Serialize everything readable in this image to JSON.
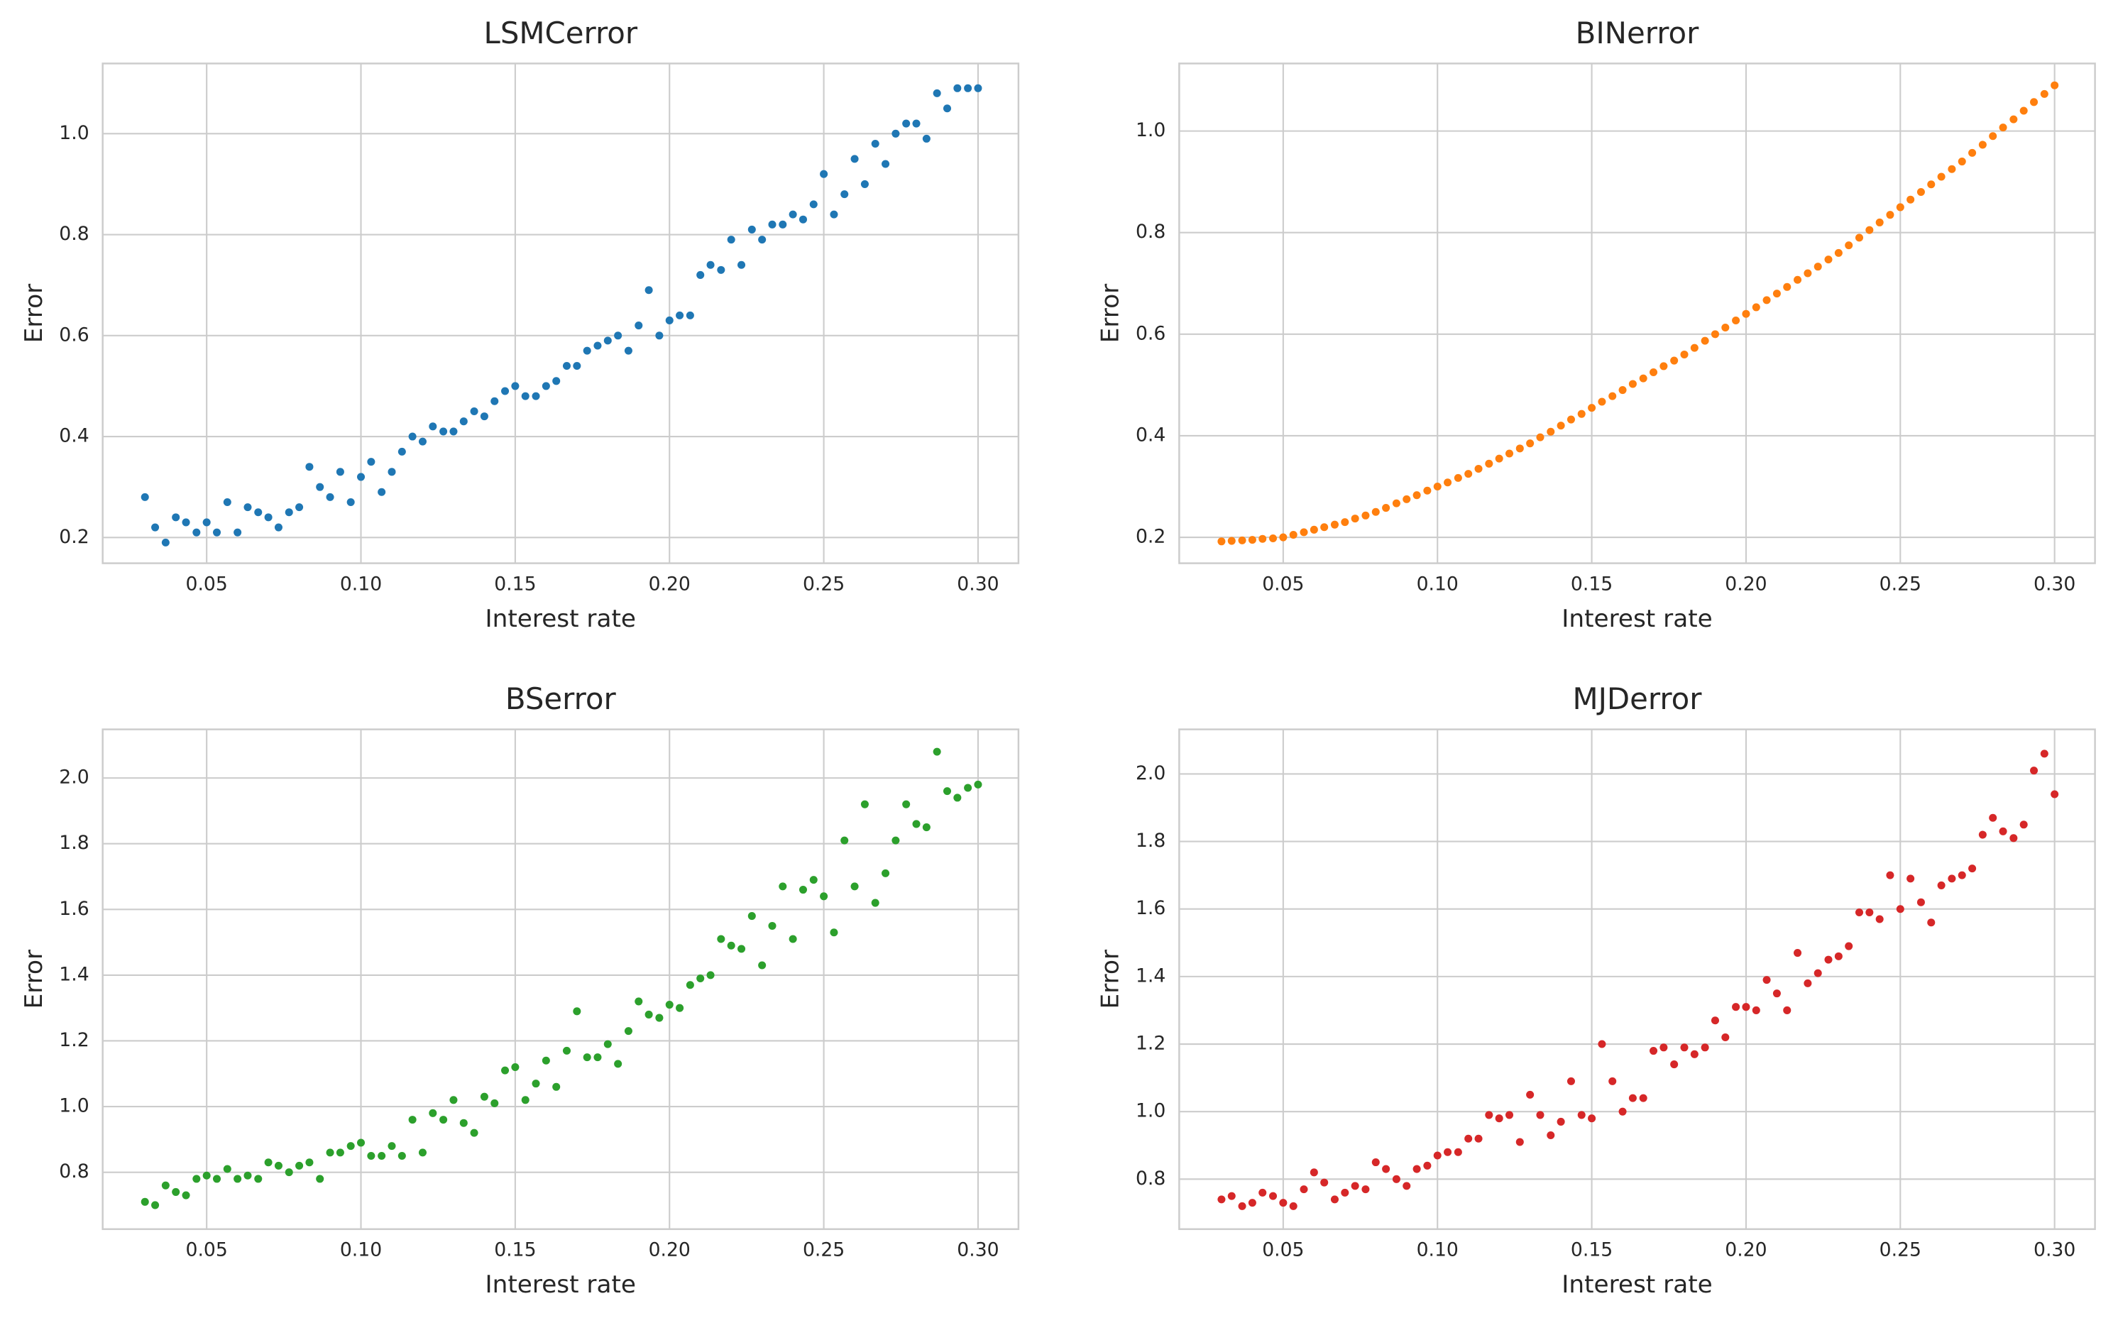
{
  "chart_data": [
    {
      "type": "scatter",
      "title": "LSMCerror",
      "xlabel": "Interest rate",
      "ylabel": "Error",
      "color": "#1f77b4",
      "grid": true,
      "x": [
        0.03,
        0.0333,
        0.0367,
        0.04,
        0.0433,
        0.0467,
        0.05,
        0.0533,
        0.0567,
        0.06,
        0.0633,
        0.0667,
        0.07,
        0.0733,
        0.0767,
        0.08,
        0.0833,
        0.0867,
        0.09,
        0.0933,
        0.0967,
        0.1,
        0.1033,
        0.1067,
        0.11,
        0.1133,
        0.1167,
        0.12,
        0.1233,
        0.1267,
        0.13,
        0.1333,
        0.1367,
        0.14,
        0.1433,
        0.1467,
        0.15,
        0.1533,
        0.1567,
        0.16,
        0.1633,
        0.1667,
        0.17,
        0.1733,
        0.1767,
        0.18,
        0.1833,
        0.1867,
        0.19,
        0.1933,
        0.1967,
        0.2,
        0.2033,
        0.2067,
        0.21,
        0.2133,
        0.2167,
        0.22,
        0.2233,
        0.2267,
        0.23,
        0.2333,
        0.2367,
        0.24,
        0.2433,
        0.2467,
        0.25,
        0.2533,
        0.2567,
        0.26,
        0.2633,
        0.2667,
        0.27,
        0.2733,
        0.2767,
        0.28,
        0.2833,
        0.2867,
        0.29,
        0.2933,
        0.2967,
        0.3
      ],
      "values": [
        0.28,
        0.22,
        0.19,
        0.24,
        0.23,
        0.21,
        0.23,
        0.21,
        0.27,
        0.21,
        0.26,
        0.25,
        0.24,
        0.22,
        0.25,
        0.26,
        0.34,
        0.3,
        0.28,
        0.33,
        0.27,
        0.32,
        0.35,
        0.29,
        0.33,
        0.37,
        0.4,
        0.39,
        0.42,
        0.41,
        0.41,
        0.43,
        0.45,
        0.44,
        0.47,
        0.49,
        0.5,
        0.48,
        0.48,
        0.5,
        0.51,
        0.54,
        0.54,
        0.57,
        0.58,
        0.59,
        0.6,
        0.57,
        0.62,
        0.69,
        0.6,
        0.63,
        0.64,
        0.64,
        0.72,
        0.74,
        0.73,
        0.79,
        0.74,
        0.81,
        0.79,
        0.82,
        0.82,
        0.84,
        0.83,
        0.86,
        0.92,
        0.84,
        0.88,
        0.95,
        0.9,
        0.98,
        0.94,
        1.0,
        1.02,
        1.02,
        0.99,
        1.08,
        1.05,
        1.09,
        1.09,
        1.09
      ],
      "xlim": [
        0.0163,
        0.3131
      ],
      "ylim": [
        0.149,
        1.139
      ],
      "xticks": [
        0.05,
        {
          "value": 0.1,
          "label": "0.10"
        },
        0.15,
        {
          "value": 0.2,
          "label": "0.20"
        },
        0.25,
        {
          "value": 0.3,
          "label": "0.30"
        }
      ],
      "yticks": [
        0.2,
        0.4,
        0.6,
        0.8,
        {
          "value": 1,
          "label": "1.0"
        }
      ]
    },
    {
      "type": "scatter",
      "title": "BINerror",
      "xlabel": "Interest rate",
      "ylabel": "Error",
      "color": "#ff7f0e",
      "grid": true,
      "x": [
        0.03,
        0.0333,
        0.0367,
        0.04,
        0.0433,
        0.0467,
        0.05,
        0.0533,
        0.0567,
        0.06,
        0.0633,
        0.0667,
        0.07,
        0.0733,
        0.0767,
        0.08,
        0.0833,
        0.0867,
        0.09,
        0.0933,
        0.0967,
        0.1,
        0.1033,
        0.1067,
        0.11,
        0.1133,
        0.1167,
        0.12,
        0.1233,
        0.1267,
        0.13,
        0.1333,
        0.1367,
        0.14,
        0.1433,
        0.1467,
        0.15,
        0.1533,
        0.1567,
        0.16,
        0.1633,
        0.1667,
        0.17,
        0.1733,
        0.1767,
        0.18,
        0.1833,
        0.1867,
        0.19,
        0.1933,
        0.1967,
        0.2,
        0.2033,
        0.2067,
        0.21,
        0.2133,
        0.2167,
        0.22,
        0.2233,
        0.2267,
        0.23,
        0.2333,
        0.2367,
        0.24,
        0.2433,
        0.2467,
        0.25,
        0.2533,
        0.2567,
        0.26,
        0.2633,
        0.2667,
        0.27,
        0.2733,
        0.2767,
        0.28,
        0.2833,
        0.2867,
        0.29,
        0.2933,
        0.2967,
        0.3
      ],
      "values": [
        0.192,
        0.193,
        0.194,
        0.195,
        0.197,
        0.198,
        0.2,
        0.205,
        0.21,
        0.215,
        0.22,
        0.225,
        0.23,
        0.237,
        0.243,
        0.25,
        0.258,
        0.267,
        0.275,
        0.283,
        0.292,
        0.3,
        0.308,
        0.317,
        0.325,
        0.335,
        0.345,
        0.355,
        0.365,
        0.375,
        0.385,
        0.397,
        0.408,
        0.42,
        0.432,
        0.443,
        0.455,
        0.467,
        0.478,
        0.49,
        0.502,
        0.513,
        0.525,
        0.537,
        0.548,
        0.56,
        0.573,
        0.587,
        0.6,
        0.613,
        0.627,
        0.64,
        0.653,
        0.667,
        0.68,
        0.693,
        0.707,
        0.72,
        0.733,
        0.747,
        0.76,
        0.775,
        0.79,
        0.805,
        0.82,
        0.835,
        0.85,
        0.865,
        0.88,
        0.895,
        0.91,
        0.925,
        0.94,
        0.957,
        0.973,
        0.99,
        1.007,
        1.023,
        1.04,
        1.057,
        1.073,
        1.09
      ],
      "xlim": [
        0.0163,
        0.3131
      ],
      "ylim": [
        0.149,
        1.133
      ],
      "xticks": [
        0.05,
        {
          "value": 0.1,
          "label": "0.10"
        },
        0.15,
        {
          "value": 0.2,
          "label": "0.20"
        },
        0.25,
        {
          "value": 0.3,
          "label": "0.30"
        }
      ],
      "yticks": [
        0.2,
        0.4,
        0.6,
        0.8,
        {
          "value": 1,
          "label": "1.0"
        }
      ]
    },
    {
      "type": "scatter",
      "title": "BSerror",
      "xlabel": "Interest rate",
      "ylabel": "Error",
      "color": "#2ca02c",
      "grid": true,
      "x": [
        0.03,
        0.0333,
        0.0367,
        0.04,
        0.0433,
        0.0467,
        0.05,
        0.0533,
        0.0567,
        0.06,
        0.0633,
        0.0667,
        0.07,
        0.0733,
        0.0767,
        0.08,
        0.0833,
        0.0867,
        0.09,
        0.0933,
        0.0967,
        0.1,
        0.1033,
        0.1067,
        0.11,
        0.1133,
        0.1167,
        0.12,
        0.1233,
        0.1267,
        0.13,
        0.1333,
        0.1367,
        0.14,
        0.1433,
        0.1467,
        0.15,
        0.1533,
        0.1567,
        0.16,
        0.1633,
        0.1667,
        0.17,
        0.1733,
        0.1767,
        0.18,
        0.1833,
        0.1867,
        0.19,
        0.1933,
        0.1967,
        0.2,
        0.2033,
        0.2067,
        0.21,
        0.2133,
        0.2167,
        0.22,
        0.2233,
        0.2267,
        0.23,
        0.2333,
        0.2367,
        0.24,
        0.2433,
        0.2467,
        0.25,
        0.2533,
        0.2567,
        0.26,
        0.2633,
        0.2667,
        0.27,
        0.2733,
        0.2767,
        0.28,
        0.2833,
        0.2867,
        0.29,
        0.2933,
        0.2967,
        0.3
      ],
      "values": [
        0.71,
        0.7,
        0.76,
        0.74,
        0.73,
        0.78,
        0.79,
        0.78,
        0.81,
        0.78,
        0.79,
        0.78,
        0.83,
        0.82,
        0.8,
        0.82,
        0.83,
        0.78,
        0.86,
        0.86,
        0.88,
        0.89,
        0.85,
        0.85,
        0.88,
        0.85,
        0.96,
        0.86,
        0.98,
        0.96,
        1.02,
        0.95,
        0.92,
        1.03,
        1.01,
        1.11,
        1.12,
        1.02,
        1.07,
        1.14,
        1.06,
        1.17,
        1.29,
        1.15,
        1.15,
        1.19,
        1.13,
        1.23,
        1.32,
        1.28,
        1.27,
        1.31,
        1.3,
        1.37,
        1.39,
        1.4,
        1.51,
        1.49,
        1.48,
        1.58,
        1.43,
        1.55,
        1.67,
        1.51,
        1.66,
        1.69,
        1.64,
        1.53,
        1.81,
        1.67,
        1.92,
        1.62,
        1.71,
        1.81,
        1.92,
        1.86,
        1.85,
        2.08,
        1.96,
        1.94,
        1.97,
        1.98
      ],
      "xlim": [
        0.0163,
        0.3131
      ],
      "ylim": [
        0.627,
        2.148
      ],
      "xticks": [
        0.05,
        {
          "value": 0.1,
          "label": "0.10"
        },
        0.15,
        {
          "value": 0.2,
          "label": "0.20"
        },
        0.25,
        {
          "value": 0.3,
          "label": "0.30"
        }
      ],
      "yticks": [
        0.8,
        {
          "value": 1,
          "label": "1.0"
        },
        1.2,
        1.4,
        1.6,
        1.8,
        {
          "value": 2,
          "label": "2.0"
        }
      ]
    },
    {
      "type": "scatter",
      "title": "MJDerror",
      "xlabel": "Interest rate",
      "ylabel": "Error",
      "color": "#d62728",
      "grid": true,
      "x": [
        0.03,
        0.0333,
        0.0367,
        0.04,
        0.0433,
        0.0467,
        0.05,
        0.0533,
        0.0567,
        0.06,
        0.0633,
        0.0667,
        0.07,
        0.0733,
        0.0767,
        0.08,
        0.0833,
        0.0867,
        0.09,
        0.0933,
        0.0967,
        0.1,
        0.1033,
        0.1067,
        0.11,
        0.1133,
        0.1167,
        0.12,
        0.1233,
        0.1267,
        0.13,
        0.1333,
        0.1367,
        0.14,
        0.1433,
        0.1467,
        0.15,
        0.1533,
        0.1567,
        0.16,
        0.1633,
        0.1667,
        0.17,
        0.1733,
        0.1767,
        0.18,
        0.1833,
        0.1867,
        0.19,
        0.1933,
        0.1967,
        0.2,
        0.2033,
        0.2067,
        0.21,
        0.2133,
        0.2167,
        0.22,
        0.2233,
        0.2267,
        0.23,
        0.2333,
        0.2367,
        0.24,
        0.2433,
        0.2467,
        0.25,
        0.2533,
        0.2567,
        0.26,
        0.2633,
        0.2667,
        0.27,
        0.2733,
        0.2767,
        0.28,
        0.2833,
        0.2867,
        0.29,
        0.2933,
        0.2967,
        0.3
      ],
      "values": [
        0.74,
        0.75,
        0.72,
        0.73,
        0.76,
        0.75,
        0.73,
        0.72,
        0.77,
        0.82,
        0.79,
        0.74,
        0.76,
        0.78,
        0.77,
        0.85,
        0.83,
        0.8,
        0.78,
        0.83,
        0.84,
        0.87,
        0.88,
        0.88,
        0.92,
        0.92,
        0.99,
        0.98,
        0.99,
        0.91,
        1.05,
        0.99,
        0.93,
        0.97,
        1.09,
        0.99,
        0.98,
        1.2,
        1.09,
        1.0,
        1.04,
        1.04,
        1.18,
        1.19,
        1.14,
        1.19,
        1.17,
        1.19,
        1.27,
        1.22,
        1.31,
        1.31,
        1.3,
        1.39,
        1.35,
        1.3,
        1.47,
        1.38,
        1.41,
        1.45,
        1.46,
        1.49,
        1.59,
        1.59,
        1.57,
        1.7,
        1.6,
        1.69,
        1.62,
        1.56,
        1.67,
        1.69,
        1.7,
        1.72,
        1.82,
        1.87,
        1.83,
        1.81,
        1.85,
        2.01,
        2.06,
        1.94
      ],
      "xlim": [
        0.0163,
        0.3131
      ],
      "ylim": [
        0.652,
        2.132
      ],
      "xticks": [
        0.05,
        {
          "value": 0.1,
          "label": "0.10"
        },
        0.15,
        {
          "value": 0.2,
          "label": "0.20"
        },
        0.25,
        {
          "value": 0.3,
          "label": "0.30"
        }
      ],
      "yticks": [
        0.8,
        {
          "value": 1,
          "label": "1.0"
        },
        1.2,
        1.4,
        1.6,
        1.8,
        {
          "value": 2,
          "label": "2.0"
        }
      ]
    }
  ]
}
